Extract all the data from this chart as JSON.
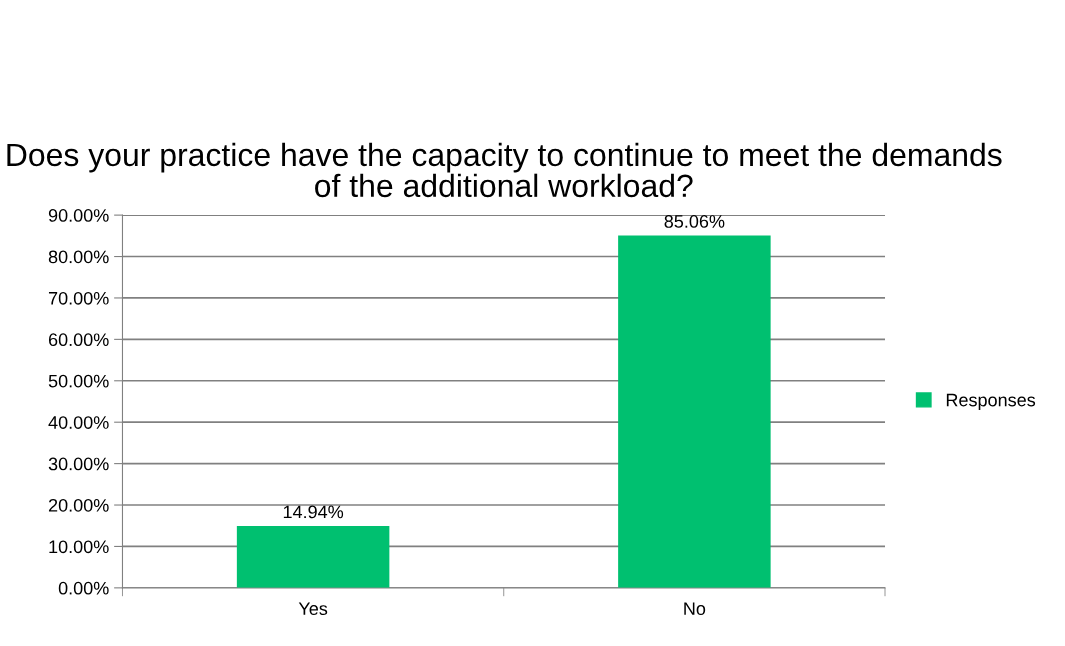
{
  "chart_data": {
    "type": "bar",
    "title": "Does your practice have the capacity to continue to meet the demands of the additional workload?",
    "categories": [
      "Yes",
      "No"
    ],
    "series": [
      {
        "name": "Responses",
        "color": "#00c070",
        "values": [
          14.94,
          85.06
        ],
        "value_labels": [
          "14.94%",
          "85.06%"
        ]
      }
    ],
    "ylim": [
      0,
      90
    ],
    "yticks": [
      {
        "value": 0,
        "label": "0.00%"
      },
      {
        "value": 10,
        "label": "10.00%"
      },
      {
        "value": 20,
        "label": "20.00%"
      },
      {
        "value": 30,
        "label": "30.00%"
      },
      {
        "value": 40,
        "label": "40.00%"
      },
      {
        "value": 50,
        "label": "50.00%"
      },
      {
        "value": 60,
        "label": "60.00%"
      },
      {
        "value": 70,
        "label": "70.00%"
      },
      {
        "value": 80,
        "label": "80.00%"
      },
      {
        "value": 90,
        "label": "90.00%"
      }
    ],
    "grid": "y",
    "legend": "right"
  }
}
